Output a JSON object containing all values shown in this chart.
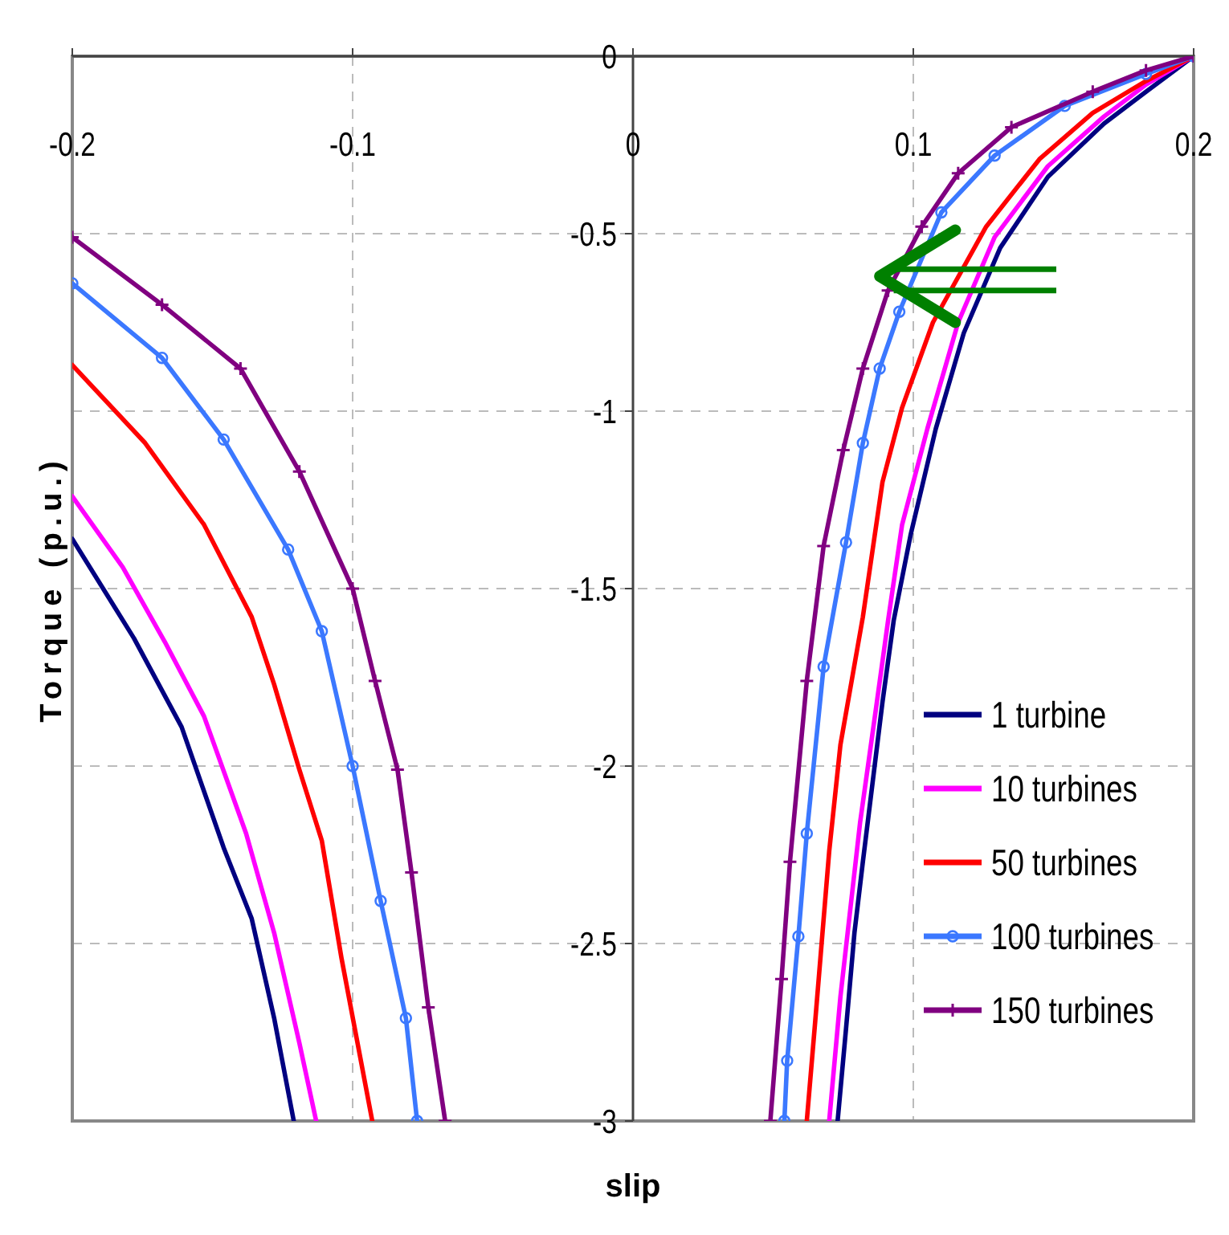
{
  "chart_data": {
    "type": "line",
    "xlabel": "slip",
    "ylabel": "Torque (p.u.)",
    "xlim": [
      -0.2,
      0.2
    ],
    "ylim": [
      -3,
      0
    ],
    "xticks": [
      -0.2,
      -0.1,
      0,
      0.1,
      0.2
    ],
    "yticks": [
      0,
      -0.5,
      -1,
      -1.5,
      -2,
      -2.5,
      -3
    ],
    "grid": true,
    "legend": "bottom right",
    "line_style": "solid",
    "series": [
      {
        "name": "1 turbine",
        "color": "#000080",
        "marker": "none",
        "x": [
          -0.2,
          -0.178,
          -0.161,
          -0.146,
          -0.136,
          -0.128,
          -0.121,
          null,
          0.073,
          0.076,
          0.079,
          0.082,
          0.089,
          0.093,
          0.099,
          0.108,
          0.118,
          0.131,
          0.148,
          0.168,
          0.183,
          0.2
        ],
        "values": [
          -1.36,
          -1.64,
          -1.89,
          -2.23,
          -2.43,
          -2.71,
          -3,
          null,
          -3,
          -2.74,
          -2.47,
          -2.27,
          -1.82,
          -1.59,
          -1.35,
          -1.05,
          -0.78,
          -0.54,
          -0.34,
          -0.19,
          -0.1,
          0
        ]
      },
      {
        "name": "10 turbines",
        "color": "#ff00ff",
        "marker": "none",
        "x": [
          -0.2,
          -0.182,
          -0.167,
          -0.153,
          -0.138,
          -0.128,
          -0.119,
          -0.113,
          null,
          0.07,
          0.074,
          0.081,
          0.087,
          0.091,
          0.096,
          0.105,
          0.116,
          0.129,
          0.148,
          0.168,
          0.183,
          0.2
        ],
        "values": [
          -1.24,
          -1.44,
          -1.65,
          -1.86,
          -2.19,
          -2.47,
          -2.78,
          -3,
          null,
          -3,
          -2.65,
          -2.16,
          -1.82,
          -1.59,
          -1.32,
          -1.05,
          -0.75,
          -0.51,
          -0.31,
          -0.17,
          -0.08,
          0
        ]
      },
      {
        "name": "50 turbines",
        "color": "#ff0000",
        "marker": "none",
        "x": [
          -0.2,
          -0.174,
          -0.153,
          -0.136,
          -0.128,
          -0.119,
          -0.111,
          -0.104,
          -0.093,
          null,
          0.062,
          0.065,
          0.07,
          0.074,
          0.082,
          0.089,
          0.096,
          0.107,
          0.126,
          0.145,
          0.164,
          0.183,
          0.2
        ],
        "values": [
          -0.87,
          -1.09,
          -1.32,
          -1.58,
          -1.77,
          -2.01,
          -2.21,
          -2.54,
          -3,
          null,
          -3,
          -2.72,
          -2.24,
          -1.94,
          -1.58,
          -1.2,
          -0.99,
          -0.75,
          -0.48,
          -0.29,
          -0.16,
          -0.07,
          0
        ]
      },
      {
        "name": "100 turbines",
        "color": "#3b78ff",
        "marker": "circle",
        "x": [
          -0.2,
          -0.168,
          -0.146,
          -0.123,
          -0.111,
          -0.1,
          -0.09,
          -0.081,
          -0.077,
          null,
          0.054,
          0.055,
          0.059,
          0.062,
          0.068,
          0.076,
          0.082,
          0.088,
          0.095,
          0.11,
          0.129,
          0.154,
          0.183,
          0.2
        ],
        "values": [
          -0.64,
          -0.85,
          -1.08,
          -1.39,
          -1.62,
          -2,
          -2.38,
          -2.71,
          -3,
          null,
          -3,
          -2.83,
          -2.48,
          -2.19,
          -1.72,
          -1.37,
          -1.09,
          -0.88,
          -0.72,
          -0.44,
          -0.28,
          -0.14,
          -0.05,
          0
        ]
      },
      {
        "name": "150 turbines",
        "color": "#800080",
        "marker": "cross",
        "x": [
          -0.2,
          -0.168,
          -0.14,
          -0.119,
          -0.1,
          -0.092,
          -0.084,
          -0.079,
          -0.073,
          -0.067,
          null,
          0.049,
          0.053,
          0.056,
          0.062,
          0.068,
          0.075,
          0.082,
          0.091,
          0.103,
          0.116,
          0.135,
          0.164,
          0.183,
          0.2
        ],
        "values": [
          -0.51,
          -0.7,
          -0.88,
          -1.17,
          -1.5,
          -1.76,
          -2.01,
          -2.3,
          -2.68,
          -3,
          null,
          -3,
          -2.6,
          -2.27,
          -1.76,
          -1.38,
          -1.11,
          -0.88,
          -0.66,
          -0.48,
          -0.33,
          -0.2,
          -0.1,
          -0.04,
          0
        ]
      }
    ]
  }
}
